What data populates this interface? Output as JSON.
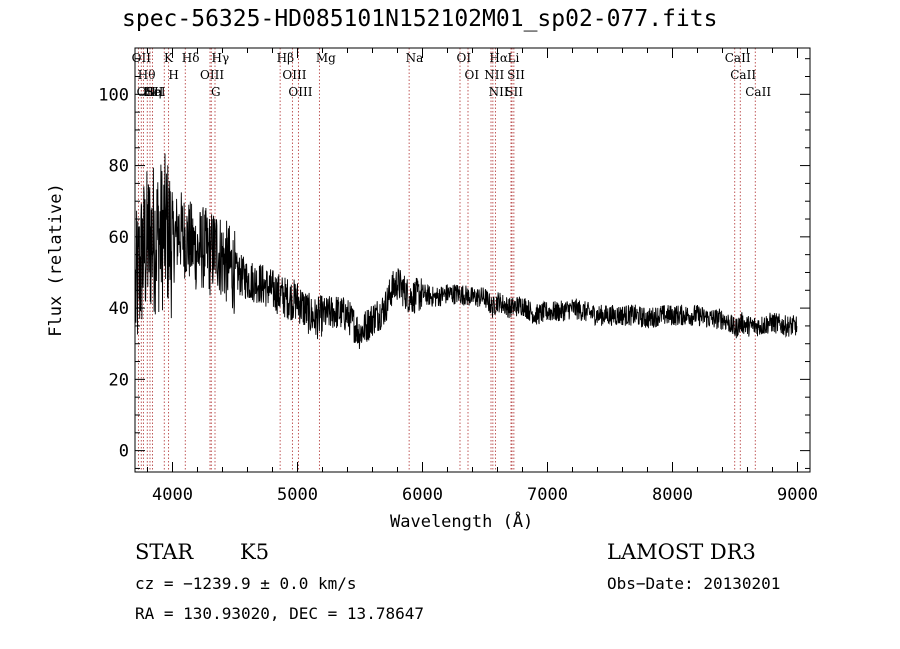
{
  "chart_data": {
    "type": "line",
    "title": "spec-56325-HD085101N152102M01_sp02-077.fits",
    "xlabel": "Wavelength (Å)",
    "ylabel": "Flux (relative)",
    "xlim": [
      3700,
      9100
    ],
    "ylim": [
      -6,
      113
    ],
    "xticks": [
      4000,
      5000,
      6000,
      7000,
      8000,
      9000
    ],
    "yticks": [
      0,
      20,
      40,
      60,
      80,
      100
    ],
    "series": [
      {
        "name": "flux",
        "x": [
          3700,
          3760,
          3800,
          3850,
          3900,
          3950,
          4000,
          4050,
          4100,
          4150,
          4200,
          4250,
          4300,
          4350,
          4400,
          4450,
          4500,
          4600,
          4700,
          4800,
          4850,
          4900,
          5000,
          5100,
          5150,
          5200,
          5300,
          5400,
          5500,
          5600,
          5700,
          5750,
          5800,
          5900,
          6000,
          6100,
          6200,
          6300,
          6400,
          6500,
          6563,
          6600,
          6700,
          6800,
          6900,
          7000,
          7100,
          7200,
          7300,
          7400,
          7500,
          7600,
          7700,
          7800,
          7900,
          8000,
          8100,
          8200,
          8300,
          8400,
          8450,
          8500,
          8550,
          8600,
          8700,
          8800,
          8900,
          8950,
          9000
        ],
        "y": [
          43,
          55,
          58,
          60,
          60,
          62,
          58,
          62,
          60,
          58,
          56,
          57,
          55,
          57,
          54,
          52,
          50,
          48,
          47,
          45,
          44,
          43,
          42,
          38,
          37,
          38,
          39,
          38,
          33,
          37,
          40,
          45,
          47,
          43,
          44,
          43,
          44,
          44,
          43,
          43,
          40,
          42,
          40,
          41,
          38,
          39,
          39,
          40,
          39,
          38,
          38,
          38,
          38,
          37,
          38,
          38,
          38,
          38,
          37,
          37,
          36,
          34,
          36,
          35,
          35,
          36,
          35,
          35,
          35
        ]
      }
    ],
    "line_markers": [
      {
        "label": "OII",
        "wavelength": 3727
      },
      {
        "label": "Hθ",
        "wavelength": 3750
      },
      {
        "label": "OII",
        "wavelength": 3767
      },
      {
        "label": "Hη",
        "wavelength": 3798
      },
      {
        "label": "HeI",
        "wavelength": 3820
      },
      {
        "label": "K",
        "wavelength": 3934
      },
      {
        "label": "SII",
        "wavelength": 3840
      },
      {
        "label": "H",
        "wavelength": 3969
      },
      {
        "label": "Hδ",
        "wavelength": 4102
      },
      {
        "label": "OIII",
        "wavelength": 4300
      },
      {
        "label": "Hγ",
        "wavelength": 4340
      },
      {
        "label": "G",
        "wavelength": 4310
      },
      {
        "label": "Hβ",
        "wavelength": 4861
      },
      {
        "label": "OIII",
        "wavelength": 4959
      },
      {
        "label": "OIII",
        "wavelength": 5007
      },
      {
        "label": "Mg",
        "wavelength": 5175
      },
      {
        "label": "Na",
        "wavelength": 5893
      },
      {
        "label": "OI",
        "wavelength": 6300
      },
      {
        "label": "OI",
        "wavelength": 6364
      },
      {
        "label": "Hα",
        "wavelength": 6563
      },
      {
        "label": "NII",
        "wavelength": 6548
      },
      {
        "label": "NII",
        "wavelength": 6583
      },
      {
        "label": "SII",
        "wavelength": 6716
      },
      {
        "label": "Li",
        "wavelength": 6708
      },
      {
        "label": "SII",
        "wavelength": 6731
      },
      {
        "label": "CaII",
        "wavelength": 8498
      },
      {
        "label": "CaII",
        "wavelength": 8542
      },
      {
        "label": "CaII",
        "wavelength": 8662
      }
    ]
  },
  "info": {
    "objtype": "STAR",
    "subclass": "K5",
    "survey": "LAMOST DR3",
    "cz": "cz = −1239.9 ± 0.0 km/s",
    "obsdate": "Obs−Date: 20130201",
    "radec": "RA = 130.93020, DEC =  13.78647"
  }
}
